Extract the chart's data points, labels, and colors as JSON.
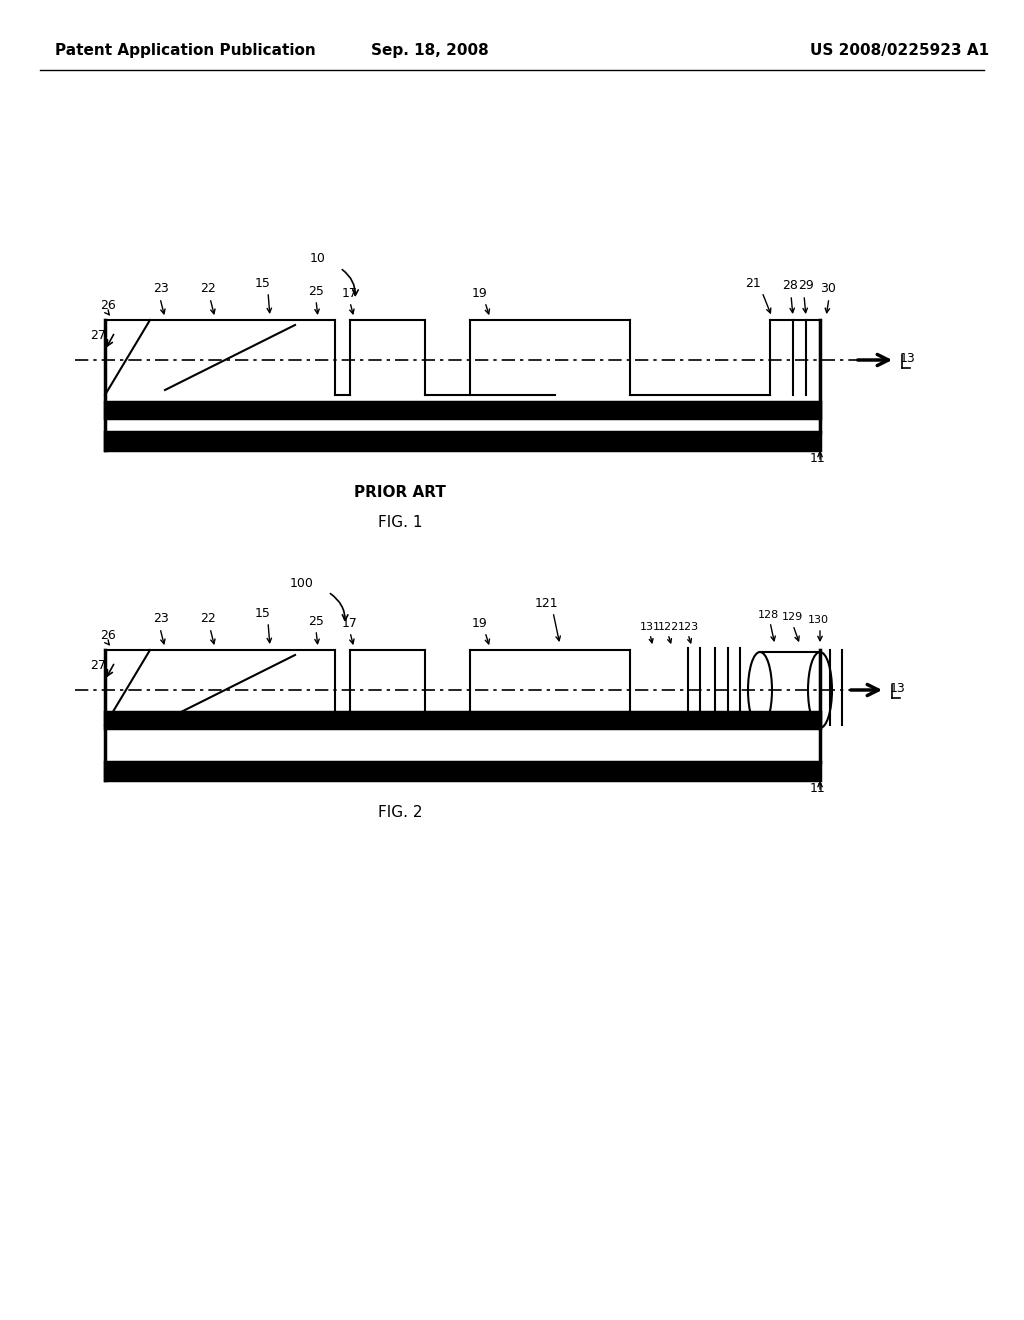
{
  "bg_color": "#ffffff",
  "header_left": "Patent Application Publication",
  "header_center": "Sep. 18, 2008",
  "header_right": "US 2008/0225923 A1",
  "header_fontsize": 11,
  "prior_art_label": "PRIOR ART",
  "fig1_label": "FIG. 1",
  "fig2_label": "FIG. 2",
  "line_color": "#000000",
  "lw": 1.5,
  "lw_thick": 2.5
}
